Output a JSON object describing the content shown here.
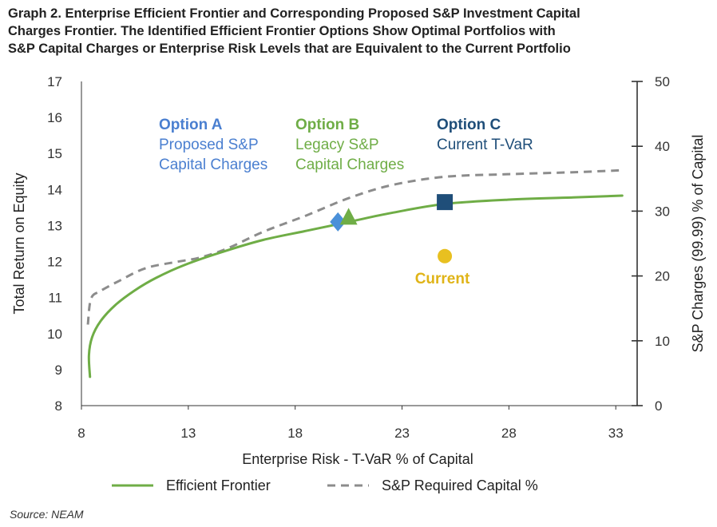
{
  "title_lines": [
    "Graph 2. Enterprise Efficient Frontier and Corresponding Proposed S&P Investment Capital",
    "Charges Frontier. The Identified Efficient Frontier Options Show Optimal Portfolios with",
    "S&P Capital Charges or Enterprise Risk Levels that are Equivalent to the Current Portfolio"
  ],
  "source": "Source: NEAM",
  "chart_data": {
    "type": "line",
    "xlabel": "Enterprise Risk - T-VaR % of Capital",
    "ylabel": "Total Return on Equity",
    "y2label": "S&P Charges (99.99) % of Capital",
    "xlim": [
      8,
      34
    ],
    "ylim": [
      8,
      17
    ],
    "y2lim": [
      0,
      50
    ],
    "xticks": [
      "8",
      "13",
      "18",
      "23",
      "28",
      "33"
    ],
    "yticks": [
      "8",
      "9",
      "10",
      "11",
      "12",
      "13",
      "14",
      "15",
      "16",
      "17"
    ],
    "y2ticks": [
      "0",
      "10",
      "20",
      "30",
      "40",
      "50"
    ],
    "series": [
      {
        "name": "Efficient Frontier",
        "axis": "left",
        "color": "#6fad46",
        "style": "solid",
        "x": [
          8.4,
          8.35,
          8.5,
          8.9,
          9.6,
          10.5,
          11.5,
          12.8,
          14.5,
          16.5,
          18.5,
          20.5,
          22.5,
          25.0,
          28.0,
          31.0,
          33.3
        ],
        "y": [
          8.8,
          9.4,
          9.9,
          10.35,
          10.8,
          11.2,
          11.55,
          11.9,
          12.25,
          12.6,
          12.85,
          13.1,
          13.35,
          13.6,
          13.72,
          13.78,
          13.83
        ]
      },
      {
        "name": "S&P Required Capital %",
        "axis": "right",
        "color": "#8c8c8c",
        "style": "dashed",
        "x": [
          8.3,
          8.45,
          8.9,
          9.8,
          11.0,
          12.5,
          13.5,
          14.8,
          16.5,
          18.5,
          20.5,
          22.5,
          25.0,
          28.0,
          31.0,
          33.3
        ],
        "y": [
          12.5,
          16.5,
          17.7,
          19.3,
          21.2,
          22.2,
          22.8,
          24.2,
          26.8,
          29.3,
          32.0,
          34.0,
          35.3,
          35.7,
          36.0,
          36.3
        ]
      }
    ],
    "points": [
      {
        "name": "Option A",
        "x": 20.0,
        "y": 13.1,
        "marker": "diamond",
        "color": "#4a90d9"
      },
      {
        "name": "Option B",
        "x": 20.5,
        "y": 13.2,
        "marker": "triangle",
        "color": "#6fad46"
      },
      {
        "name": "Option C",
        "x": 25.0,
        "y": 13.65,
        "marker": "square",
        "color": "#1f4e79"
      },
      {
        "name": "Current",
        "x": 25.0,
        "y": 12.15,
        "marker": "circle",
        "color": "#e8c020"
      }
    ],
    "annotations": [
      {
        "head": "Option A",
        "lines": [
          "Proposed S&P",
          "Capital Charges"
        ],
        "color": "#4a7fd0"
      },
      {
        "head": "Option B",
        "lines": [
          "Legacy S&P",
          "Capital Charges"
        ],
        "color": "#6fad46"
      },
      {
        "head": "Option C",
        "lines": [
          "Current T-VaR"
        ],
        "color": "#1f4e79"
      },
      {
        "head": "",
        "lines": [
          "Current"
        ],
        "color": "#e0b418"
      }
    ],
    "legend": [
      {
        "label": "Efficient Frontier",
        "color": "#6fad46",
        "style": "solid"
      },
      {
        "label": "S&P Required Capital %",
        "color": "#8c8c8c",
        "style": "dashed"
      }
    ],
    "legend_position": "bottom"
  }
}
